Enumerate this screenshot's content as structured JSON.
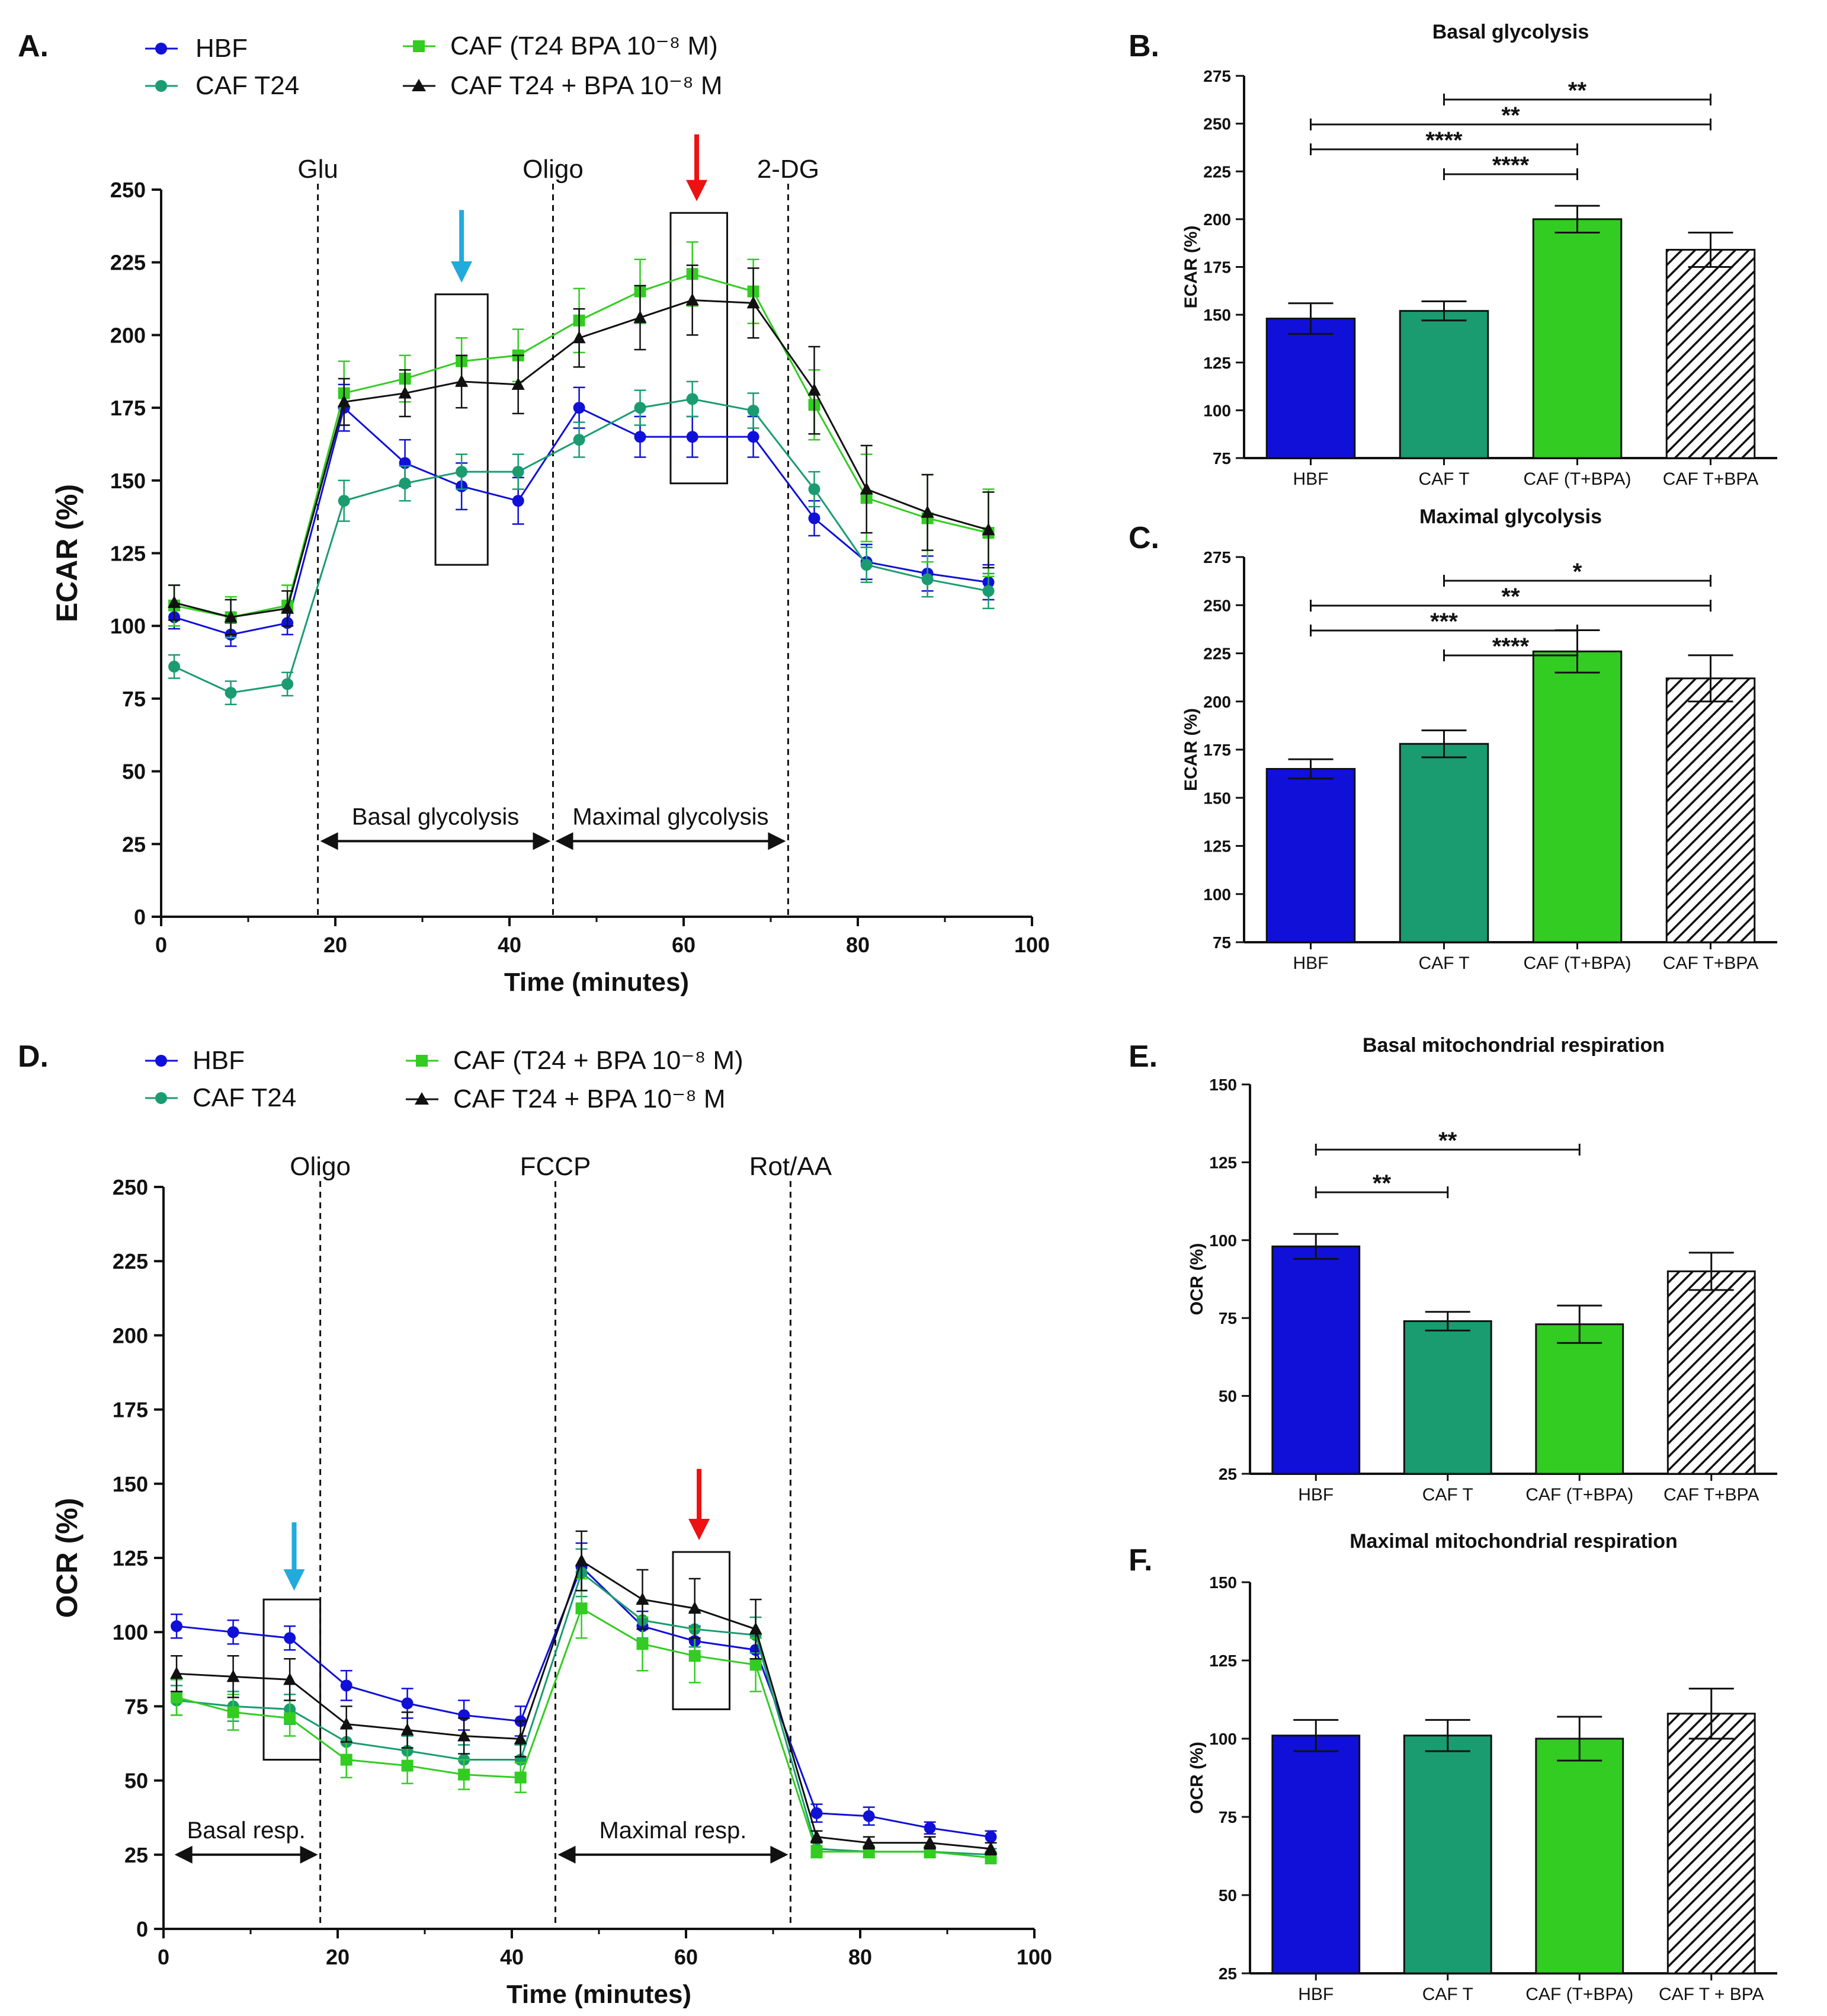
{
  "colors": {
    "hbf": "#1010d8",
    "caf_t24": "#1a9c70",
    "caf_t24_bpa_cond": "#33cc22",
    "caf_t24_plus_bpa": "#111111",
    "blue_arrow": "#22aadd",
    "red_arrow": "#ee1111"
  },
  "panel_labels": {
    "a": "A.",
    "b": "B.",
    "c": "C.",
    "d": "D.",
    "e": "E.",
    "f": "F."
  },
  "chart_data": [
    {
      "id": "A",
      "type": "line",
      "ylabel": "ECAR (%)",
      "xlabel": "Time (minutes)",
      "xlim": [
        0,
        100
      ],
      "ylim": [
        0,
        250
      ],
      "xticks": [
        "0",
        "20",
        "40",
        "60",
        "80",
        "100"
      ],
      "yticks": [
        "0",
        "25",
        "50",
        "75",
        "100",
        "125",
        "150",
        "175",
        "200",
        "225",
        "250"
      ],
      "x": [
        1.5,
        8,
        14.5,
        21,
        28,
        34.5,
        41,
        48,
        55,
        61,
        68,
        75,
        81,
        88,
        95
      ],
      "series": [
        {
          "name": "HBF",
          "color_key": "hbf",
          "marker": "circle",
          "values": [
            103,
            97,
            101,
            175,
            156,
            148,
            143,
            175,
            165,
            165,
            165,
            137,
            122,
            118,
            115
          ],
          "errors": [
            4,
            4,
            4,
            8,
            8,
            8,
            8,
            7,
            7,
            7,
            7,
            6,
            6,
            6,
            6
          ]
        },
        {
          "name": "CAF T24",
          "color_key": "caf_t24",
          "marker": "circle",
          "values": [
            86,
            77,
            80,
            143,
            149,
            153,
            153,
            164,
            175,
            178,
            174,
            147,
            121,
            116,
            112
          ],
          "errors": [
            4,
            4,
            4,
            7,
            6,
            6,
            6,
            6,
            6,
            6,
            6,
            6,
            6,
            6,
            6
          ]
        },
        {
          "name": "CAF (T24 BPA 10⁻⁸ M)",
          "color_key": "caf_t24_bpa_cond",
          "marker": "square",
          "values": [
            107,
            103,
            107,
            180,
            185,
            191,
            193,
            205,
            215,
            221,
            215,
            176,
            144,
            137,
            132
          ],
          "errors": [
            7,
            7,
            7,
            11,
            8,
            8,
            9,
            11,
            11,
            11,
            11,
            12,
            15,
            15,
            15
          ]
        },
        {
          "name": "CAF T24 + BPA 10⁻⁸ M",
          "color_key": "caf_t24_plus_bpa",
          "marker": "triangle",
          "values": [
            108,
            103,
            106,
            177,
            180,
            184,
            183,
            199,
            206,
            212,
            211,
            181,
            147,
            139,
            133
          ],
          "errors": [
            6,
            6,
            6,
            8,
            8,
            9,
            10,
            10,
            11,
            12,
            12,
            15,
            15,
            13,
            13
          ]
        }
      ],
      "vlines": [
        {
          "x": 18,
          "label": "Glu"
        },
        {
          "x": 45,
          "label": "Oligo"
        },
        {
          "x": 72,
          "label": "2-DG"
        }
      ],
      "spans": [
        {
          "from": 18,
          "to": 45,
          "y": 26,
          "label": "Basal glycolysis"
        },
        {
          "from": 45,
          "to": 72,
          "y": 26,
          "label": "Maximal glycolysis"
        }
      ],
      "boxes": [
        {
          "x0": 31.5,
          "x1": 37.5,
          "y0": 121,
          "y1": 214
        },
        {
          "x0": 58.5,
          "x1": 65,
          "y0": 149,
          "y1": 242
        }
      ],
      "arrows": [
        {
          "x": 34.5,
          "y_from": 243,
          "y_to": 218,
          "color_key": "blue_arrow"
        },
        {
          "x": 61.5,
          "y_from": 269,
          "y_to": 246,
          "color_key": "red_arrow"
        }
      ]
    },
    {
      "id": "B",
      "type": "bar",
      "title": "Basal glycolysis",
      "ylabel": "ECAR (%)",
      "categories": [
        "HBF",
        "CAF T",
        "CAF (T+BPA)",
        "CAF T+BPA"
      ],
      "values": [
        148,
        152,
        200,
        184
      ],
      "errors": [
        8,
        5,
        7,
        9
      ],
      "ylim": [
        75,
        275
      ],
      "yticks": [
        "75",
        "100",
        "125",
        "150",
        "175",
        "200",
        "225",
        "250",
        "275"
      ],
      "fills": [
        "hbf",
        "caf_t24",
        "caf_t24_bpa_cond",
        "hatch"
      ],
      "significance": [
        {
          "from": 1,
          "to": 3,
          "label": "**"
        },
        {
          "from": 0,
          "to": 3,
          "label": "**"
        },
        {
          "from": 0,
          "to": 2,
          "label": "****"
        },
        {
          "from": 1,
          "to": 2,
          "label": "****"
        }
      ]
    },
    {
      "id": "C",
      "type": "bar",
      "title": "Maximal glycolysis",
      "ylabel": "ECAR (%)",
      "categories": [
        "HBF",
        "CAF T",
        "CAF (T+BPA)",
        "CAF T+BPA"
      ],
      "values": [
        165,
        178,
        226,
        212
      ],
      "errors": [
        5,
        7,
        11,
        12
      ],
      "ylim": [
        75,
        275
      ],
      "yticks": [
        "75",
        "100",
        "125",
        "150",
        "175",
        "200",
        "225",
        "250",
        "275"
      ],
      "fills": [
        "hbf",
        "caf_t24",
        "caf_t24_bpa_cond",
        "hatch"
      ],
      "significance": [
        {
          "from": 1,
          "to": 3,
          "label": "*"
        },
        {
          "from": 0,
          "to": 3,
          "label": "**"
        },
        {
          "from": 0,
          "to": 2,
          "label": "***"
        },
        {
          "from": 1,
          "to": 2,
          "label": "****"
        }
      ]
    },
    {
      "id": "D",
      "type": "line",
      "ylabel": "OCR (%)",
      "xlabel": "Time (minutes)",
      "xlim": [
        0,
        100
      ],
      "ylim": [
        0,
        250
      ],
      "xticks": [
        "0",
        "20",
        "40",
        "60",
        "80",
        "100"
      ],
      "yticks": [
        "0",
        "25",
        "50",
        "75",
        "100",
        "125",
        "150",
        "175",
        "200",
        "225",
        "250"
      ],
      "x": [
        1.5,
        8,
        14.5,
        21,
        28,
        34.5,
        41,
        48,
        55,
        61,
        68,
        75,
        81,
        88,
        95
      ],
      "series": [
        {
          "name": "HBF",
          "color_key": "hbf",
          "marker": "circle",
          "values": [
            102,
            100,
            98,
            82,
            76,
            72,
            70,
            122,
            102,
            97,
            94,
            39,
            38,
            34,
            31
          ],
          "errors": [
            4,
            4,
            4,
            5,
            5,
            5,
            5,
            8,
            5,
            5,
            4,
            3,
            3,
            2,
            2
          ]
        },
        {
          "name": "CAF T24",
          "color_key": "caf_t24",
          "marker": "circle",
          "values": [
            77,
            75,
            74,
            63,
            60,
            57,
            57,
            120,
            104,
            101,
            99,
            27,
            26,
            26,
            25
          ],
          "errors": [
            5,
            5,
            5,
            5,
            5,
            5,
            5,
            8,
            6,
            6,
            6,
            2,
            2,
            2,
            2
          ]
        },
        {
          "name": "CAF (T24 + BPA 10⁻⁸ M)",
          "color_key": "caf_t24_bpa_cond",
          "marker": "square",
          "values": [
            78,
            73,
            71,
            57,
            55,
            52,
            51,
            108,
            96,
            92,
            89,
            26,
            26,
            26,
            24
          ],
          "errors": [
            6,
            6,
            6,
            6,
            6,
            5,
            5,
            10,
            9,
            9,
            9,
            2,
            2,
            2,
            2
          ]
        },
        {
          "name": "CAF T24 + BPA 10⁻⁸ M",
          "color_key": "caf_t24_plus_bpa",
          "marker": "triangle",
          "values": [
            86,
            85,
            84,
            69,
            67,
            65,
            64,
            124,
            111,
            108,
            101,
            31,
            29,
            29,
            27
          ],
          "errors": [
            6,
            7,
            7,
            6,
            6,
            6,
            6,
            10,
            10,
            10,
            10,
            2,
            2,
            2,
            2
          ]
        }
      ],
      "vlines": [
        {
          "x": 18,
          "label": "Oligo"
        },
        {
          "x": 45,
          "label": "FCCP"
        },
        {
          "x": 72,
          "label": "Rot/AA"
        }
      ],
      "spans": [
        {
          "from": 1,
          "to": 18,
          "y": 25,
          "label": "Basal resp."
        },
        {
          "from": 45,
          "to": 72,
          "y": 25,
          "label": "Maximal resp."
        }
      ],
      "boxes": [
        {
          "x0": 11.5,
          "x1": 18,
          "y0": 57,
          "y1": 111
        },
        {
          "x0": 58.5,
          "x1": 65,
          "y0": 74,
          "y1": 127
        }
      ],
      "arrows": [
        {
          "x": 15,
          "y_from": 137,
          "y_to": 114,
          "color_key": "blue_arrow"
        },
        {
          "x": 61.5,
          "y_from": 155,
          "y_to": 131,
          "color_key": "red_arrow"
        }
      ]
    },
    {
      "id": "E",
      "type": "bar",
      "title": "Basal mitochondrial respiration",
      "ylabel": "OCR (%)",
      "categories": [
        "HBF",
        "CAF T",
        "CAF (T+BPA)",
        "CAF T+BPA"
      ],
      "values": [
        98,
        74,
        73,
        90
      ],
      "errors": [
        4,
        3,
        6,
        6
      ],
      "ylim": [
        25,
        150
      ],
      "yticks": [
        "25",
        "50",
        "75",
        "100",
        "125",
        "150"
      ],
      "fills": [
        "hbf",
        "caf_t24",
        "caf_t24_bpa_cond",
        "hatch"
      ],
      "significance": [
        {
          "from": 0,
          "to": 2,
          "label": "**"
        },
        {
          "from": 0,
          "to": 1,
          "label": "**"
        }
      ]
    },
    {
      "id": "F",
      "type": "bar",
      "title": "Maximal mitochondrial respiration",
      "ylabel": "OCR (%)",
      "categories": [
        "HBF",
        "CAF T",
        "CAF (T+BPA)",
        "CAF T + BPA"
      ],
      "values": [
        101,
        101,
        100,
        108
      ],
      "errors": [
        5,
        5,
        7,
        8
      ],
      "ylim": [
        25,
        150
      ],
      "yticks": [
        "25",
        "50",
        "75",
        "100",
        "125",
        "150"
      ],
      "fills": [
        "hbf",
        "caf_t24",
        "caf_t24_bpa_cond",
        "hatch"
      ],
      "significance": []
    }
  ]
}
